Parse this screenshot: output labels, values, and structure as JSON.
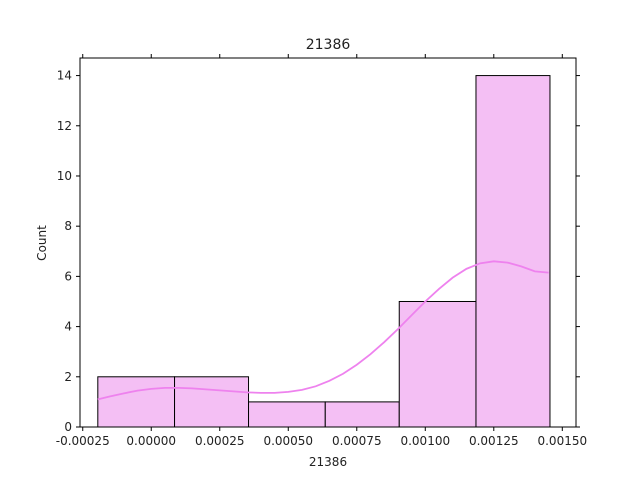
{
  "chart_data": {
    "type": "bar",
    "title": "21386",
    "xlabel": "21386",
    "ylabel": "Count",
    "xlim": [
      -0.00026,
      0.00155
    ],
    "ylim": [
      0,
      14.7
    ],
    "bins": [
      {
        "x0": -0.000195,
        "x1": 8.5e-05,
        "count": 2
      },
      {
        "x0": 8.5e-05,
        "x1": 0.000355,
        "count": 2
      },
      {
        "x0": 0.000355,
        "x1": 0.000635,
        "count": 1
      },
      {
        "x0": 0.000635,
        "x1": 0.000905,
        "count": 1
      },
      {
        "x0": 0.000905,
        "x1": 0.001185,
        "count": 5
      },
      {
        "x0": 0.001185,
        "x1": 0.001455,
        "count": 14
      }
    ],
    "kde": {
      "x": [
        -0.000195,
        -0.00015,
        -0.0001,
        -5e-05,
        0.0,
        5e-05,
        0.0001,
        0.00015,
        0.0002,
        0.00025,
        0.0003,
        0.00035,
        0.0004,
        0.00045,
        0.0005,
        0.00055,
        0.0006,
        0.00065,
        0.0007,
        0.00075,
        0.0008,
        0.00085,
        0.0009,
        0.00095,
        0.001,
        0.00105,
        0.0011,
        0.00115,
        0.0012,
        0.00125,
        0.0013,
        0.00135,
        0.0014,
        0.00145
      ],
      "y": [
        1.1,
        1.22,
        1.34,
        1.45,
        1.52,
        1.56,
        1.56,
        1.54,
        1.5,
        1.46,
        1.42,
        1.38,
        1.36,
        1.36,
        1.4,
        1.48,
        1.62,
        1.84,
        2.12,
        2.48,
        2.9,
        3.38,
        3.9,
        4.45,
        5.0,
        5.5,
        5.95,
        6.3,
        6.52,
        6.6,
        6.55,
        6.4,
        6.2,
        6.15
      ]
    },
    "xticks": [
      {
        "value": -0.00025,
        "label": "-0.00025"
      },
      {
        "value": 0.0,
        "label": "0.00000"
      },
      {
        "value": 0.00025,
        "label": "0.00025"
      },
      {
        "value": 0.0005,
        "label": "0.00050"
      },
      {
        "value": 0.00075,
        "label": "0.00075"
      },
      {
        "value": 0.001,
        "label": "0.00100"
      },
      {
        "value": 0.00125,
        "label": "0.00125"
      },
      {
        "value": 0.0015,
        "label": "0.00150"
      }
    ],
    "yticks": [
      {
        "value": 0,
        "label": "0"
      },
      {
        "value": 2,
        "label": "2"
      },
      {
        "value": 4,
        "label": "4"
      },
      {
        "value": 6,
        "label": "6"
      },
      {
        "value": 8,
        "label": "8"
      },
      {
        "value": 10,
        "label": "10"
      },
      {
        "value": 12,
        "label": "12"
      },
      {
        "value": 14,
        "label": "14"
      }
    ],
    "grid": false,
    "colors": {
      "bar_fill": "#f4bff4",
      "bar_edge": "#000000",
      "kde_line": "#ee82ee"
    }
  }
}
